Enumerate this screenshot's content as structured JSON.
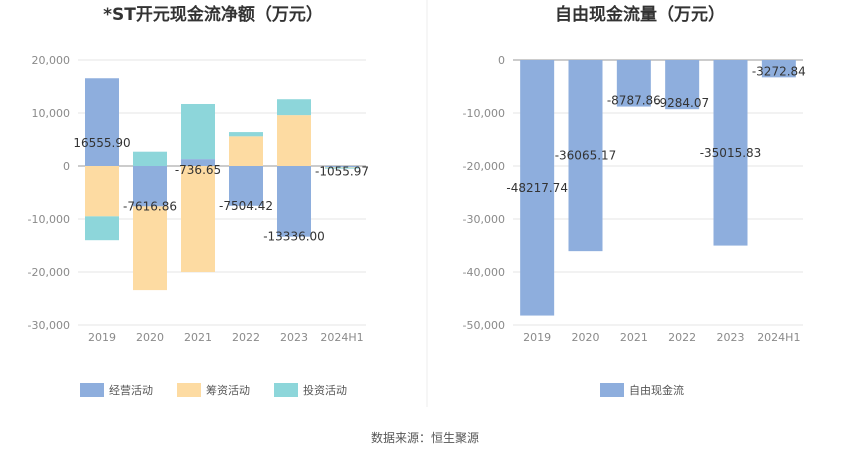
{
  "source_label": "数据来源：恒生聚源",
  "chart_data": [
    {
      "type": "bar",
      "stacked": true,
      "title": "*ST开元现金流净额（万元）",
      "categories": [
        "2019",
        "2020",
        "2021",
        "2022",
        "2023",
        "2024H1"
      ],
      "ylim": [
        -30000,
        20000
      ],
      "yticks": [
        20000,
        10000,
        0,
        -10000,
        -20000,
        -30000
      ],
      "ytick_labels": [
        "20,000",
        "10,000",
        "0",
        "-10,000",
        "-20,000",
        "-30,000"
      ],
      "grid": true,
      "legend_position": "bottom",
      "series": [
        {
          "name": "经营活动",
          "color": "#8eaedd",
          "values": [
            16555.9,
            -7616.86,
            1300,
            -7504.42,
            -13336.0,
            -200
          ]
        },
        {
          "name": "筹资活动",
          "color": "#fddba2",
          "values": [
            -9500,
            -15800,
            -20000,
            5600,
            9600,
            -100
          ]
        },
        {
          "name": "投资活动",
          "color": "#8dd6da",
          "values": [
            -4500,
            2700,
            10400,
            800,
            3000,
            -200
          ]
        }
      ],
      "net_labels": [
        "16555.90",
        "-7616.86",
        "-736.65",
        "-7504.42",
        "-13336.00",
        "-1055.97"
      ],
      "net_values": [
        16555.9,
        -7616.86,
        -736.65,
        -7504.42,
        -13336.0,
        -1055.97
      ]
    },
    {
      "type": "bar",
      "title": "自由现金流量（万元）",
      "categories": [
        "2019",
        "2020",
        "2021",
        "2022",
        "2023",
        "2024H1"
      ],
      "ylim": [
        -50000,
        0
      ],
      "yticks": [
        0,
        -10000,
        -20000,
        -30000,
        -40000,
        -50000
      ],
      "ytick_labels": [
        "0",
        "-10,000",
        "-20,000",
        "-30,000",
        "-40,000",
        "-50,000"
      ],
      "grid": true,
      "legend_position": "bottom",
      "series": [
        {
          "name": "自由现金流",
          "color": "#8eaedd",
          "values": [
            -48217.74,
            -36065.17,
            -8787.86,
            -9284.07,
            -35015.83,
            -3272.84
          ]
        }
      ],
      "data_labels": [
        "-48217.74",
        "-36065.17",
        "-8787.86",
        "-9284.07",
        "-35015.83",
        "-3272.84"
      ]
    }
  ]
}
